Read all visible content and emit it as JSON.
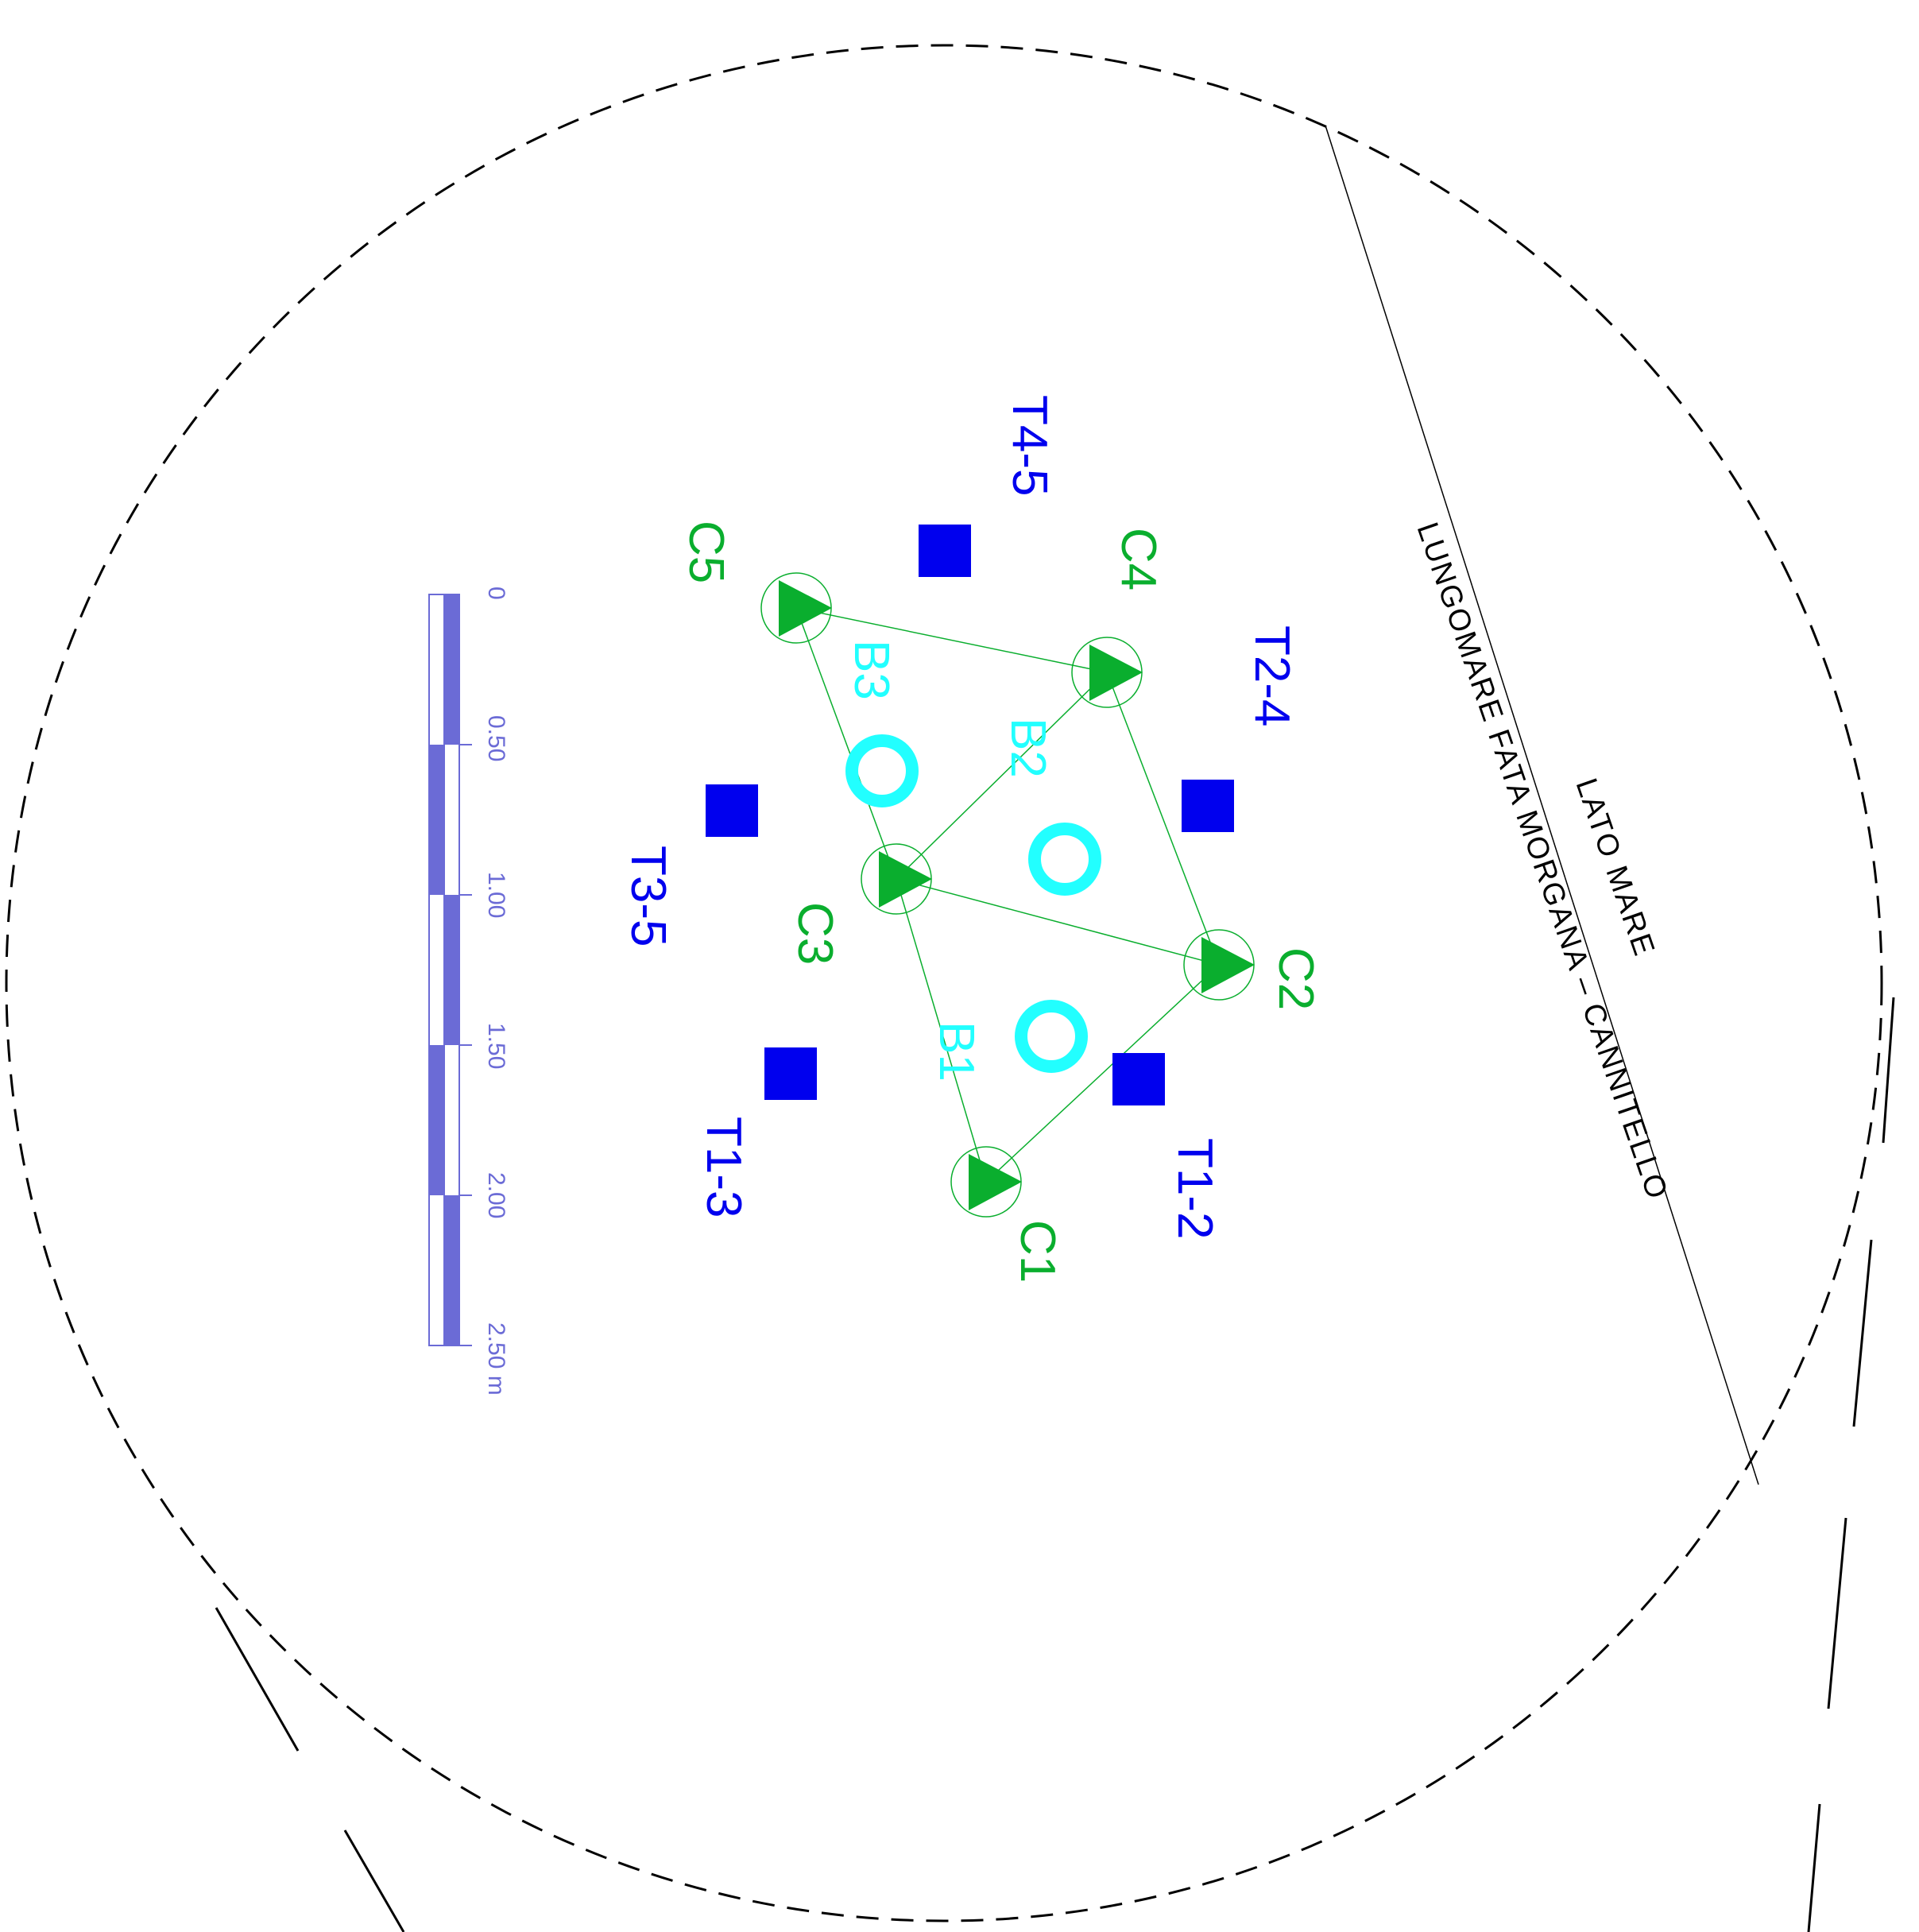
{
  "colors": {
    "background": "#ffffff",
    "outline": "#000000",
    "accelerometer": "#0aae2e",
    "borehole": "#22ffff",
    "test_point": "#0000ee",
    "scale_bar": "#6b6bd6"
  },
  "labels": {
    "lato_mare": "LATO MARE",
    "street": "LUNGOMARE FATA MORGANA – CANNITELLO"
  },
  "accelerometers": [
    {
      "id": "C1",
      "label": "C1"
    },
    {
      "id": "C2",
      "label": "C2"
    },
    {
      "id": "C3",
      "label": "C3"
    },
    {
      "id": "C4",
      "label": "C4"
    },
    {
      "id": "C5",
      "label": "C5"
    }
  ],
  "boreholes": [
    {
      "id": "B1",
      "label": "B1"
    },
    {
      "id": "B2",
      "label": "B2"
    },
    {
      "id": "B3",
      "label": "B3"
    }
  ],
  "test_points": [
    {
      "id": "T1-2",
      "label": "T1-2"
    },
    {
      "id": "T1-3",
      "label": "T1-3"
    },
    {
      "id": "T2-4",
      "label": "T2-4"
    },
    {
      "id": "T3-5",
      "label": "T3-5"
    },
    {
      "id": "T4-5",
      "label": "T4-5"
    }
  ],
  "scale": {
    "ticks": [
      "0",
      "0.50",
      "1.00",
      "1.50",
      "2.00",
      "2.50 m"
    ]
  }
}
